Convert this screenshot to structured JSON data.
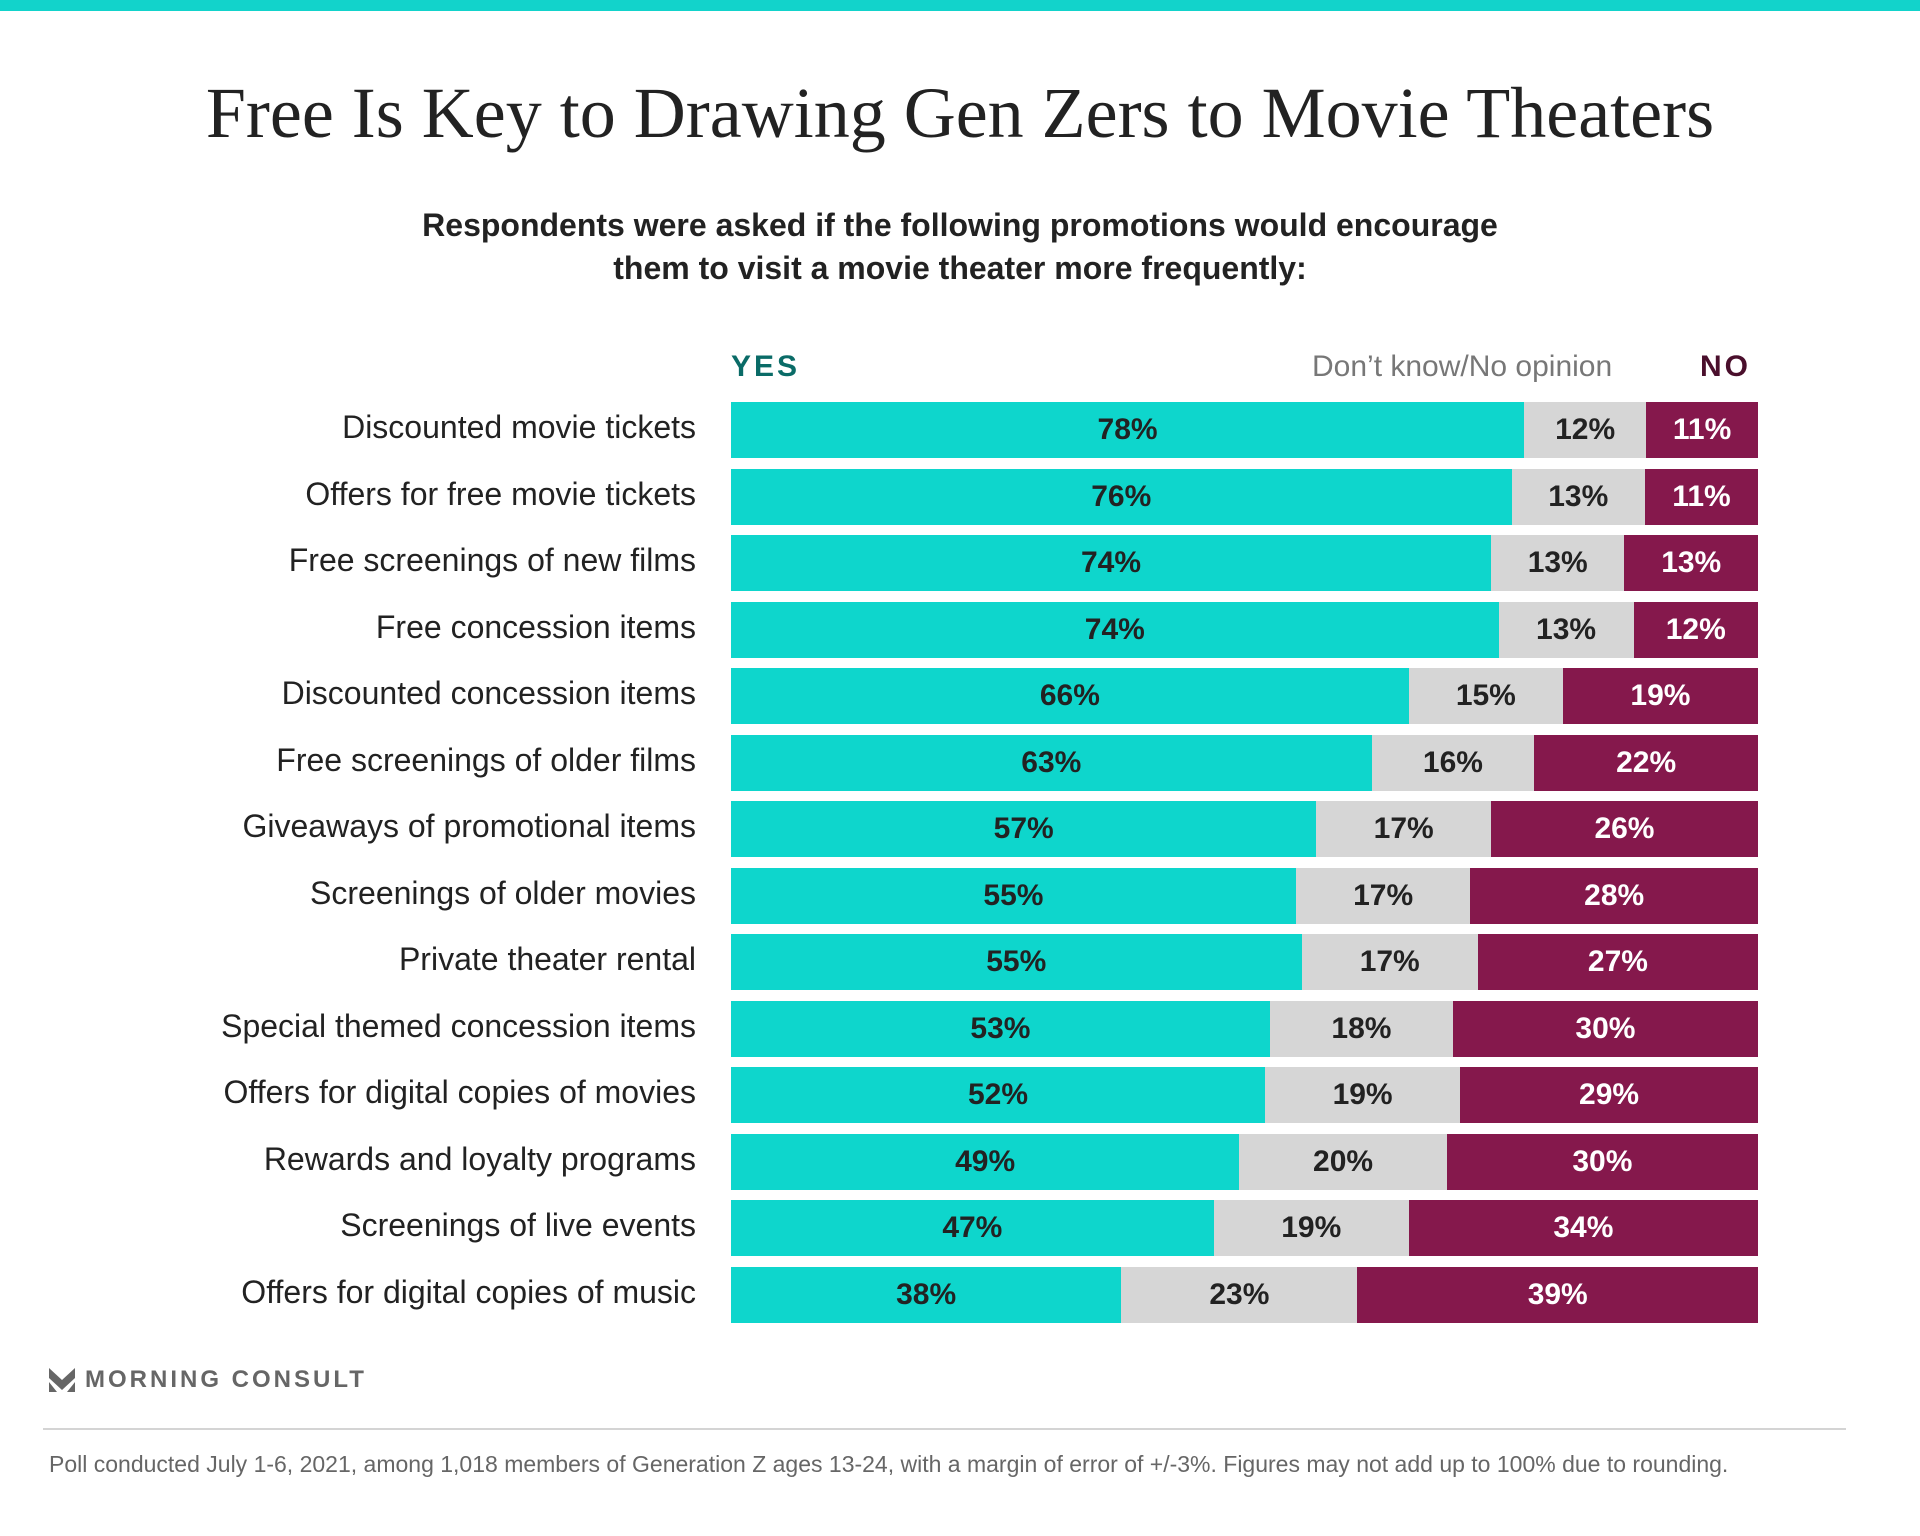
{
  "title": "Free Is Key to Drawing Gen Zers to Movie Theaters",
  "subtitle_line1": "Respondents were asked if the following promotions would encourage",
  "subtitle_line2": "them to visit a movie theater more frequently:",
  "logo_text": "MORNING CONSULT",
  "footnote": "Poll conducted July 1-6, 2021, among 1,018 members of Generation Z ages 13-24, with a margin of error of +/-3%. Figures may not add up to 100% due to rounding.",
  "chart_data": {
    "type": "bar",
    "stacked": true,
    "orientation": "horizontal",
    "legend": [
      "YES",
      "Don’t know/No opinion",
      "NO"
    ],
    "colors": {
      "yes": "#0ed6cc",
      "dk": "#d6d6d6",
      "no": "#85184c"
    },
    "categories": [
      "Discounted movie tickets",
      "Offers for free movie tickets",
      "Free screenings of new films",
      "Free concession items",
      "Discounted concession items",
      "Free screenings of older films",
      "Giveaways of promotional items",
      "Screenings of older movies",
      "Private theater rental",
      "Special themed concession items",
      "Offers for digital copies of movies",
      "Rewards and loyalty programs",
      "Screenings of live events",
      "Offers for digital copies of music"
    ],
    "series": [
      {
        "name": "YES",
        "values": [
          78,
          76,
          74,
          74,
          66,
          63,
          57,
          55,
          55,
          53,
          52,
          49,
          47,
          38
        ]
      },
      {
        "name": "Don’t know/No opinion",
        "values": [
          12,
          13,
          13,
          13,
          15,
          16,
          17,
          17,
          17,
          18,
          19,
          20,
          19,
          23
        ]
      },
      {
        "name": "NO",
        "values": [
          11,
          11,
          13,
          12,
          19,
          22,
          26,
          28,
          27,
          30,
          29,
          30,
          34,
          39
        ]
      }
    ],
    "unit": "%"
  }
}
